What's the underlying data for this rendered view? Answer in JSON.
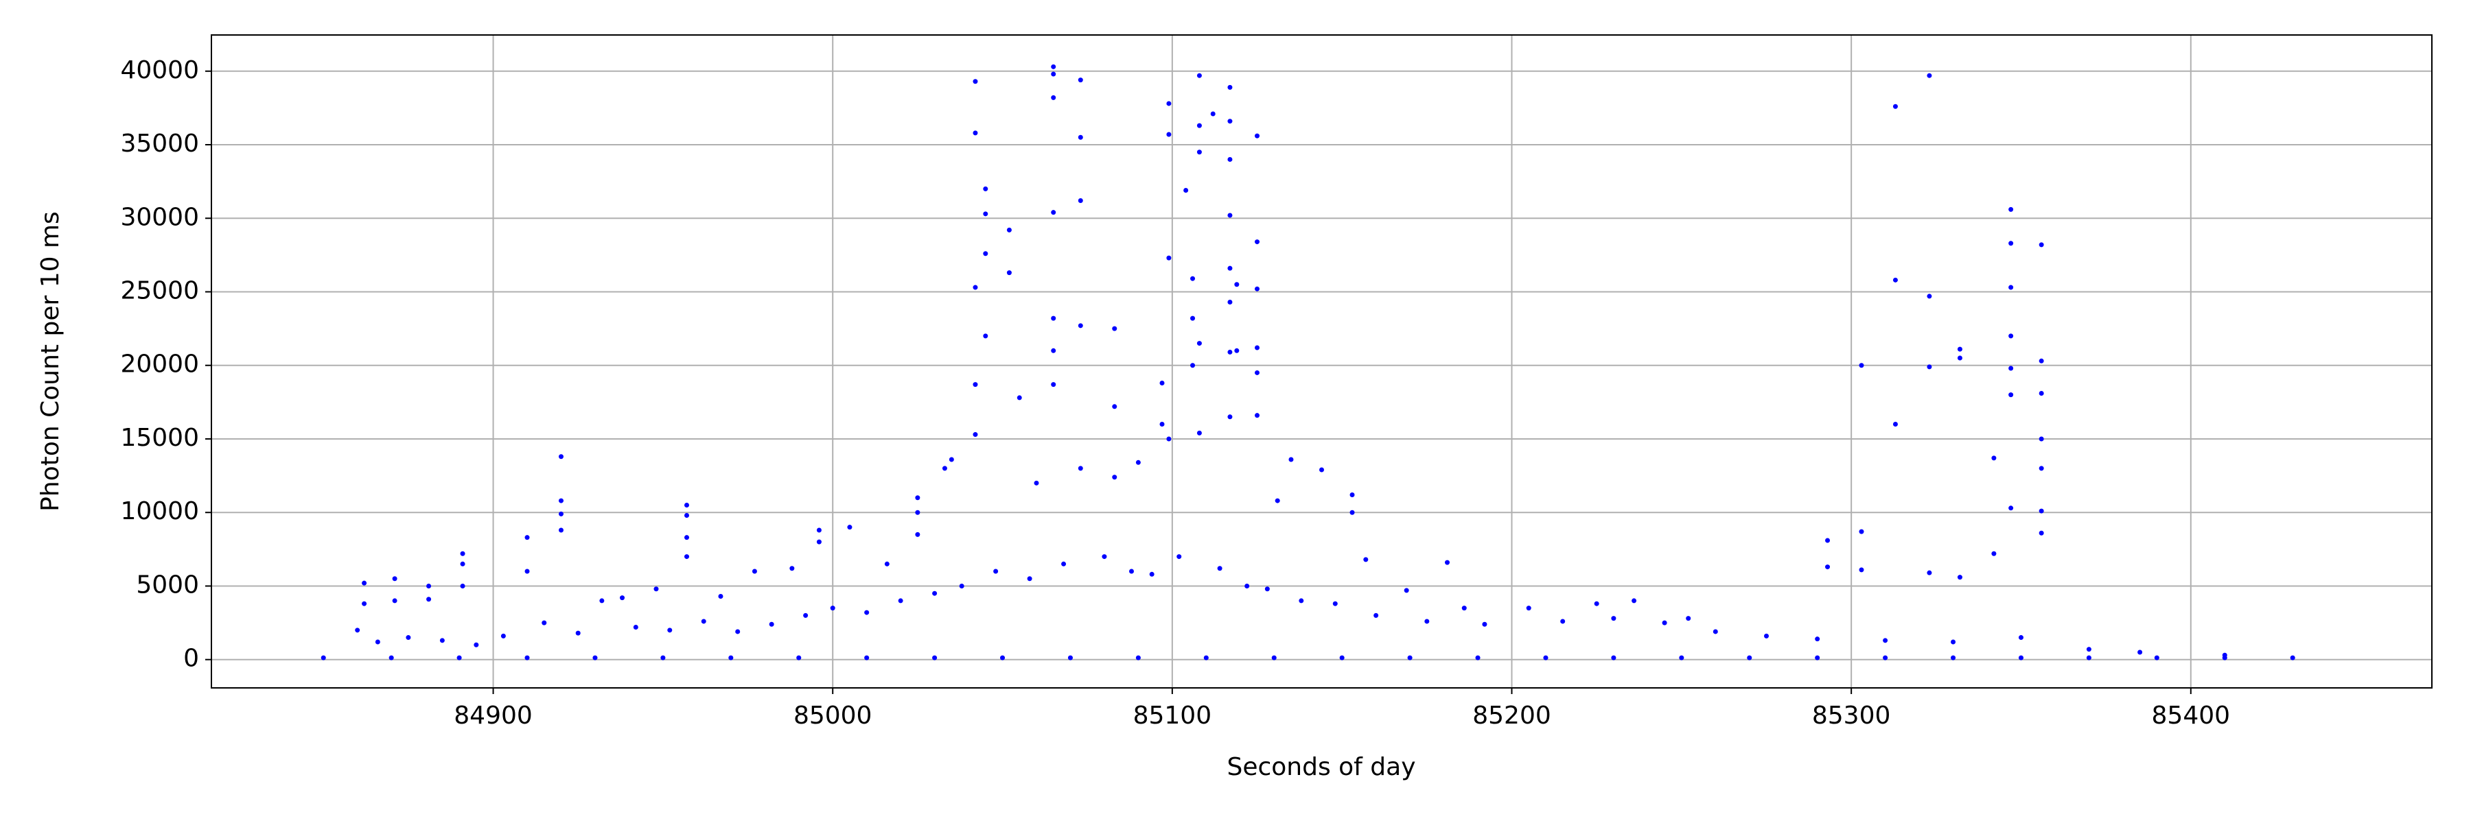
{
  "chart_data": {
    "type": "scatter",
    "color": "blue",
    "grid": true,
    "x_label": "Seconds of day",
    "y_label": "Photon Count per 10 ms",
    "xlim": [
      84817,
      85471
    ],
    "ylim": [
      -1925,
      42460
    ],
    "xticks": [
      84900,
      85000,
      85100,
      85200,
      85300,
      85400
    ],
    "yticks": [
      0,
      5000,
      10000,
      15000,
      20000,
      25000,
      30000,
      35000,
      40000
    ],
    "x": [
      84862,
      84862,
      84871,
      84871,
      84881,
      84881,
      84891,
      84891,
      84891,
      84910,
      84910,
      84920,
      84920,
      84920,
      84920,
      84932,
      84938,
      84948,
      84957,
      84957,
      84957,
      84957,
      84967,
      84977,
      84988,
      84996,
      84996,
      85005,
      85016,
      85025,
      85025,
      85025,
      85033,
      85035,
      85042,
      85042,
      85042,
      85042,
      85042,
      85045,
      85045,
      85045,
      85045,
      85052,
      85052,
      85055,
      85060,
      85065,
      85065,
      85065,
      85065,
      85065,
      85065,
      85065,
      85073,
      85073,
      85073,
      85073,
      85073,
      85083,
      85083,
      85083,
      85090,
      85097,
      85097,
      85099,
      85099,
      85099,
      85099,
      85104,
      85106,
      85106,
      85106,
      85108,
      85108,
      85108,
      85108,
      85108,
      85112,
      85117,
      85117,
      85117,
      85117,
      85117,
      85117,
      85117,
      85117,
      85119,
      85119,
      85125,
      85125,
      85125,
      85125,
      85125,
      85125,
      85131,
      85135,
      85144,
      85153,
      85153,
      85157,
      85169,
      85181,
      85186,
      85205,
      85225,
      85236,
      85252,
      85293,
      85293,
      85303,
      85303,
      85303,
      85313,
      85313,
      85313,
      85323,
      85323,
      85323,
      85323,
      85332,
      85332,
      85332,
      85342,
      85342,
      85347,
      85347,
      85347,
      85347,
      85347,
      85347,
      85347,
      85356,
      85356,
      85356,
      85356,
      85356,
      85356,
      85356,
      84860,
      84866,
      84875,
      84885,
      84895,
      84903,
      84915,
      84925,
      84942,
      84952,
      84962,
      84972,
      84982,
      84992,
      85000,
      85010,
      85020,
      85030,
      85038,
      85048,
      85058,
      85068,
      85080,
      85088,
      85094,
      85102,
      85114,
      85122,
      85128,
      85138,
      85148,
      85160,
      85175,
      85192,
      85215,
      85230,
      85245,
      85260,
      85275,
      85290,
      85310,
      85330,
      85350,
      85370,
      85385,
      85410,
      84850,
      84870,
      84890,
      84910,
      84930,
      84950,
      84970,
      84990,
      85010,
      85030,
      85050,
      85070,
      85090,
      85110,
      85130,
      85150,
      85170,
      85190,
      85210,
      85230,
      85250,
      85270,
      85290,
      85310,
      85330,
      85350,
      85370,
      85390,
      85410,
      85430
    ],
    "y": [
      5200,
      3800,
      5500,
      4000,
      5000,
      4100,
      7200,
      6500,
      5000,
      8300,
      6000,
      13800,
      10800,
      9900,
      8800,
      4000,
      4200,
      4800,
      10500,
      9800,
      8300,
      7000,
      4300,
      6000,
      6200,
      8800,
      8000,
      9000,
      6500,
      11000,
      10000,
      8500,
      13000,
      13600,
      39300,
      35800,
      25300,
      18700,
      15300,
      32000,
      30300,
      27600,
      22000,
      29200,
      26300,
      17800,
      12000,
      40300,
      39800,
      38200,
      30400,
      23200,
      21000,
      18700,
      39400,
      35500,
      31200,
      22700,
      13000,
      22500,
      17200,
      12400,
      13400,
      18800,
      16000,
      37800,
      35700,
      27300,
      15000,
      31900,
      25900,
      23200,
      20000,
      39700,
      36300,
      34500,
      21500,
      15400,
      37100,
      38900,
      36600,
      34000,
      30200,
      26600,
      24300,
      20900,
      16500,
      25500,
      21000,
      35600,
      28400,
      25200,
      21200,
      19500,
      16600,
      10800,
      13600,
      12900,
      11200,
      10000,
      6800,
      4700,
      6600,
      3500,
      3500,
      3800,
      4000,
      2800,
      8100,
      6300,
      20000,
      8700,
      6100,
      37600,
      25800,
      16000,
      39700,
      24700,
      19900,
      5900,
      21100,
      20500,
      5600,
      13700,
      7200,
      30600,
      28300,
      25300,
      22000,
      19800,
      18000,
      10300,
      28200,
      20300,
      18100,
      15000,
      13000,
      10100,
      8600,
      2000,
      1200,
      1500,
      1300,
      1000,
      1600,
      2500,
      1800,
      2200,
      2000,
      2600,
      1900,
      2400,
      3000,
      3500,
      3200,
      4000,
      4500,
      5000,
      6000,
      5500,
      6500,
      7000,
      6000,
      5800,
      7000,
      6200,
      5000,
      4800,
      4000,
      3800,
      3000,
      2600,
      2400,
      2600,
      2800,
      2500,
      1900,
      1600,
      1400,
      1300,
      1200,
      1500,
      700,
      500,
      300,
      120,
      120,
      120,
      120,
      120,
      120,
      120,
      120,
      120,
      120,
      120,
      120,
      120,
      120,
      120,
      120,
      120,
      120,
      120,
      120,
      120,
      120,
      120,
      120,
      120,
      120,
      120,
      120,
      120,
      120
    ]
  }
}
